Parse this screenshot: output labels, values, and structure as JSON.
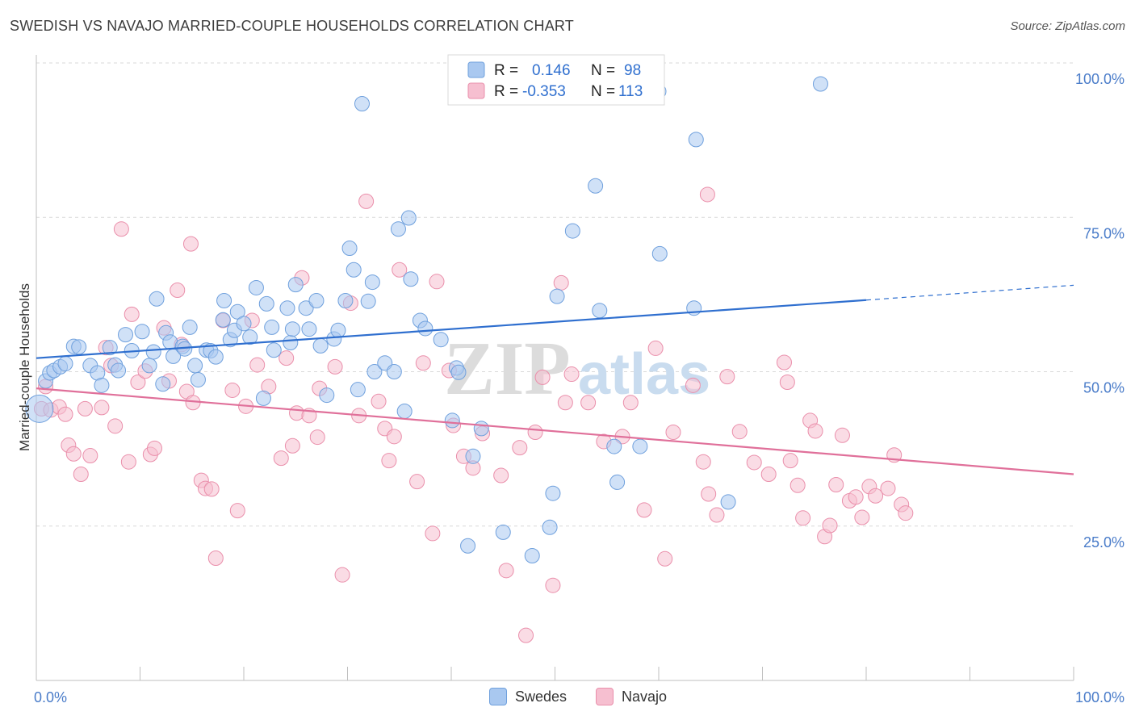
{
  "title": "SWEDISH VS NAVAJO MARRIED-COUPLE HOUSEHOLDS CORRELATION CHART",
  "source": "Source: ZipAtlas.com",
  "watermark": {
    "zip": "ZIP",
    "atlas": "atlas"
  },
  "colors": {
    "swedes_fill": "#a9c8f0",
    "swedes_stroke": "#6fa0dd",
    "swedes_line": "#2f6fcf",
    "navajo_fill": "#f6bfd0",
    "navajo_stroke": "#ea8fab",
    "navajo_line": "#e0709a",
    "tick_label": "#4a7cc9",
    "grid": "#d9d9d9"
  },
  "legend_top": {
    "rows": [
      {
        "series": "Swedes",
        "r_label": "R =",
        "r_value": "0.146",
        "n_label": "N =",
        "n_value": "98"
      },
      {
        "series": "Navajo",
        "r_label": "R =",
        "r_value": "-0.353",
        "n_label": "N =",
        "n_value": "113"
      }
    ]
  },
  "legend_bottom": {
    "items": [
      "Swedes",
      "Navajo"
    ]
  },
  "chart_data": {
    "type": "scatter",
    "title": "SWEDISH VS NAVAJO MARRIED-COUPLE HOUSEHOLDS CORRELATION CHART",
    "xlabel": "",
    "ylabel": "Married-couple Households",
    "xlim": [
      0,
      100
    ],
    "ylim": [
      0,
      100
    ],
    "x_tick_labels": [
      "0.0%",
      "100.0%"
    ],
    "y_ticks": [
      25,
      50,
      75,
      100
    ],
    "y_tick_labels": [
      "25.0%",
      "50.0%",
      "75.0%",
      "100.0%"
    ],
    "grid": true,
    "legend_placement": "top-center",
    "series": [
      {
        "name": "Swedes",
        "r": 0.146,
        "n": 98,
        "trend": {
          "x0": 0,
          "y0": 52.2,
          "x1": 80,
          "y1": 61.6,
          "dashed_to_x": 100,
          "dashed_to_y": 64.0
        },
        "points": [
          [
            0.3,
            44.0
          ],
          [
            0.9,
            48.5
          ],
          [
            1.3,
            49.8
          ],
          [
            1.7,
            50.2
          ],
          [
            2.3,
            50.8
          ],
          [
            2.8,
            51.3
          ],
          [
            3.6,
            54.1
          ],
          [
            4.1,
            54.0
          ],
          [
            5.2,
            51.0
          ],
          [
            5.9,
            49.8
          ],
          [
            6.3,
            47.8
          ],
          [
            7.1,
            53.9
          ],
          [
            7.6,
            51.1
          ],
          [
            7.9,
            50.2
          ],
          [
            8.6,
            56.0
          ],
          [
            9.2,
            53.4
          ],
          [
            10.2,
            56.5
          ],
          [
            10.9,
            51.0
          ],
          [
            11.3,
            53.2
          ],
          [
            11.6,
            61.8
          ],
          [
            12.2,
            48.0
          ],
          [
            12.5,
            56.3
          ],
          [
            12.9,
            54.8
          ],
          [
            13.2,
            52.5
          ],
          [
            14.1,
            54.1
          ],
          [
            14.3,
            53.7
          ],
          [
            14.8,
            57.2
          ],
          [
            15.3,
            51.0
          ],
          [
            15.6,
            48.7
          ],
          [
            16.4,
            53.5
          ],
          [
            16.8,
            53.4
          ],
          [
            17.3,
            52.4
          ],
          [
            18.0,
            58.4
          ],
          [
            18.1,
            61.5
          ],
          [
            18.7,
            55.2
          ],
          [
            19.1,
            56.7
          ],
          [
            19.4,
            59.7
          ],
          [
            20.0,
            57.8
          ],
          [
            20.6,
            55.6
          ],
          [
            21.2,
            63.6
          ],
          [
            21.9,
            45.7
          ],
          [
            22.2,
            61.0
          ],
          [
            22.7,
            57.2
          ],
          [
            22.9,
            53.5
          ],
          [
            24.2,
            60.3
          ],
          [
            24.5,
            54.7
          ],
          [
            24.7,
            56.9
          ],
          [
            25.0,
            64.1
          ],
          [
            26.0,
            60.3
          ],
          [
            26.3,
            56.9
          ],
          [
            27.0,
            61.5
          ],
          [
            27.4,
            54.2
          ],
          [
            28.0,
            46.2
          ],
          [
            28.7,
            55.3
          ],
          [
            29.1,
            56.7
          ],
          [
            29.8,
            61.5
          ],
          [
            30.2,
            70.0
          ],
          [
            30.6,
            66.5
          ],
          [
            31.0,
            47.1
          ],
          [
            31.4,
            93.4
          ],
          [
            32.0,
            61.4
          ],
          [
            32.4,
            64.5
          ],
          [
            32.6,
            50.0
          ],
          [
            33.6,
            51.4
          ],
          [
            34.5,
            50.0
          ],
          [
            34.9,
            73.1
          ],
          [
            35.5,
            43.6
          ],
          [
            35.9,
            74.9
          ],
          [
            36.1,
            65.0
          ],
          [
            37.0,
            58.3
          ],
          [
            37.5,
            57.0
          ],
          [
            39.0,
            55.2
          ],
          [
            40.1,
            42.1
          ],
          [
            40.5,
            50.6
          ],
          [
            40.7,
            49.9
          ],
          [
            41.6,
            21.8
          ],
          [
            42.1,
            36.3
          ],
          [
            42.9,
            40.8
          ],
          [
            43.0,
            100.0
          ],
          [
            43.5,
            100.0
          ],
          [
            45.0,
            24.0
          ],
          [
            46.3,
            99.8
          ],
          [
            47.8,
            20.2
          ],
          [
            49.5,
            24.8
          ],
          [
            49.8,
            30.3
          ],
          [
            50.2,
            62.2
          ],
          [
            51.7,
            72.8
          ],
          [
            53.9,
            80.1
          ],
          [
            54.3,
            59.9
          ],
          [
            55.7,
            37.9
          ],
          [
            56.0,
            32.1
          ],
          [
            58.2,
            37.9
          ],
          [
            60.0,
            95.4
          ],
          [
            60.1,
            69.1
          ],
          [
            63.4,
            60.3
          ],
          [
            63.6,
            87.6
          ],
          [
            66.7,
            28.9
          ],
          [
            75.6,
            96.6
          ]
        ]
      },
      {
        "name": "Navajo",
        "r": -0.353,
        "n": 113,
        "trend": {
          "x0": 0,
          "y0": 47.3,
          "x1": 100,
          "y1": 33.4
        },
        "points": [
          [
            0.5,
            44.0
          ],
          [
            0.9,
            47.6
          ],
          [
            1.4,
            43.8
          ],
          [
            2.2,
            44.3
          ],
          [
            2.8,
            43.1
          ],
          [
            3.1,
            38.1
          ],
          [
            3.6,
            36.7
          ],
          [
            4.3,
            33.4
          ],
          [
            4.7,
            44.0
          ],
          [
            5.2,
            36.4
          ],
          [
            6.3,
            44.2
          ],
          [
            6.7,
            53.9
          ],
          [
            7.2,
            51.0
          ],
          [
            7.6,
            41.2
          ],
          [
            8.2,
            73.1
          ],
          [
            8.9,
            35.4
          ],
          [
            9.2,
            59.3
          ],
          [
            9.8,
            48.3
          ],
          [
            10.5,
            50.1
          ],
          [
            11.0,
            36.6
          ],
          [
            11.4,
            37.6
          ],
          [
            12.3,
            57.1
          ],
          [
            12.8,
            48.5
          ],
          [
            13.6,
            63.2
          ],
          [
            14.0,
            54.4
          ],
          [
            14.5,
            46.8
          ],
          [
            14.9,
            70.7
          ],
          [
            15.1,
            45.0
          ],
          [
            15.9,
            32.4
          ],
          [
            16.3,
            31.1
          ],
          [
            16.9,
            31.0
          ],
          [
            17.3,
            19.8
          ],
          [
            18.0,
            58.3
          ],
          [
            18.9,
            47.0
          ],
          [
            19.4,
            27.5
          ],
          [
            20.2,
            44.4
          ],
          [
            20.8,
            58.3
          ],
          [
            21.3,
            51.1
          ],
          [
            22.4,
            47.6
          ],
          [
            23.6,
            36.0
          ],
          [
            24.1,
            52.2
          ],
          [
            24.7,
            38.0
          ],
          [
            25.1,
            43.3
          ],
          [
            25.6,
            65.2
          ],
          [
            26.3,
            42.9
          ],
          [
            27.1,
            39.4
          ],
          [
            27.3,
            47.3
          ],
          [
            28.8,
            50.8
          ],
          [
            29.5,
            17.1
          ],
          [
            30.3,
            61.1
          ],
          [
            31.1,
            42.9
          ],
          [
            31.8,
            77.6
          ],
          [
            33.0,
            45.2
          ],
          [
            33.6,
            40.8
          ],
          [
            34.0,
            35.6
          ],
          [
            34.5,
            39.5
          ],
          [
            35.0,
            66.5
          ],
          [
            36.7,
            32.2
          ],
          [
            37.3,
            51.4
          ],
          [
            38.2,
            23.8
          ],
          [
            38.6,
            64.6
          ],
          [
            39.8,
            50.2
          ],
          [
            40.2,
            41.3
          ],
          [
            41.2,
            36.3
          ],
          [
            42.1,
            34.4
          ],
          [
            43.0,
            40.0
          ],
          [
            44.8,
            33.2
          ],
          [
            45.3,
            17.8
          ],
          [
            46.6,
            37.7
          ],
          [
            47.2,
            7.3
          ],
          [
            48.1,
            40.2
          ],
          [
            48.8,
            49.1
          ],
          [
            49.8,
            15.4
          ],
          [
            50.6,
            64.4
          ],
          [
            51.0,
            45.0
          ],
          [
            51.6,
            49.6
          ],
          [
            53.2,
            45.0
          ],
          [
            54.7,
            38.7
          ],
          [
            56.5,
            39.5
          ],
          [
            57.3,
            45.0
          ],
          [
            58.6,
            27.6
          ],
          [
            59.7,
            53.8
          ],
          [
            60.6,
            19.7
          ],
          [
            61.4,
            40.2
          ],
          [
            63.3,
            47.8
          ],
          [
            64.3,
            35.4
          ],
          [
            64.7,
            78.7
          ],
          [
            64.8,
            30.2
          ],
          [
            65.6,
            26.8
          ],
          [
            66.6,
            49.2
          ],
          [
            67.8,
            40.3
          ],
          [
            69.2,
            35.3
          ],
          [
            70.6,
            33.4
          ],
          [
            72.1,
            51.5
          ],
          [
            72.4,
            48.3
          ],
          [
            72.7,
            35.6
          ],
          [
            73.4,
            31.6
          ],
          [
            73.9,
            26.3
          ],
          [
            74.6,
            42.1
          ],
          [
            75.1,
            40.4
          ],
          [
            76.0,
            23.3
          ],
          [
            76.5,
            25.1
          ],
          [
            77.1,
            31.7
          ],
          [
            77.7,
            39.7
          ],
          [
            78.4,
            29.1
          ],
          [
            79.0,
            29.7
          ],
          [
            79.6,
            26.4
          ],
          [
            80.3,
            31.4
          ],
          [
            80.9,
            29.9
          ],
          [
            82.1,
            31.1
          ],
          [
            82.7,
            36.5
          ],
          [
            83.4,
            28.5
          ],
          [
            83.8,
            27.1
          ]
        ]
      }
    ]
  }
}
